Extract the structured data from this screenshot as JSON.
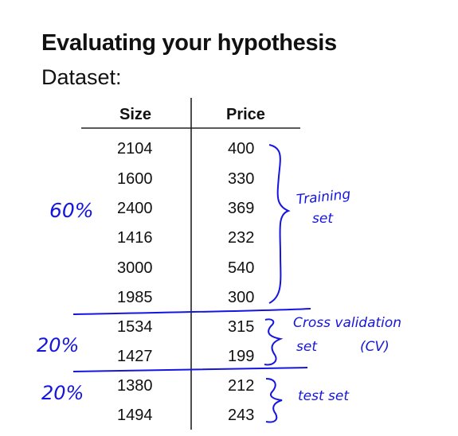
{
  "slide": {
    "title": "Evaluating your hypothesis",
    "subtitle": "Dataset:"
  },
  "table": {
    "headers": [
      "Size",
      "Price"
    ],
    "rows": [
      [
        "2104",
        "400"
      ],
      [
        "1600",
        "330"
      ],
      [
        "2400",
        "369"
      ],
      [
        "1416",
        "232"
      ],
      [
        "3000",
        "540"
      ],
      [
        "1985",
        "300"
      ],
      [
        "1534",
        "315"
      ],
      [
        "1427",
        "199"
      ],
      [
        "1380",
        "212"
      ],
      [
        "1494",
        "243"
      ]
    ]
  },
  "annotations": {
    "train_percent": "60%",
    "train_label_line1": "Training",
    "train_label_line2": "set",
    "cv_percent": "20%",
    "cv_label_line1": "Cross validation",
    "cv_label_line2": "set",
    "cv_label_abbrev": "(CV)",
    "test_percent": "20%",
    "test_label": "test set",
    "ink_color": "#1515e0"
  }
}
